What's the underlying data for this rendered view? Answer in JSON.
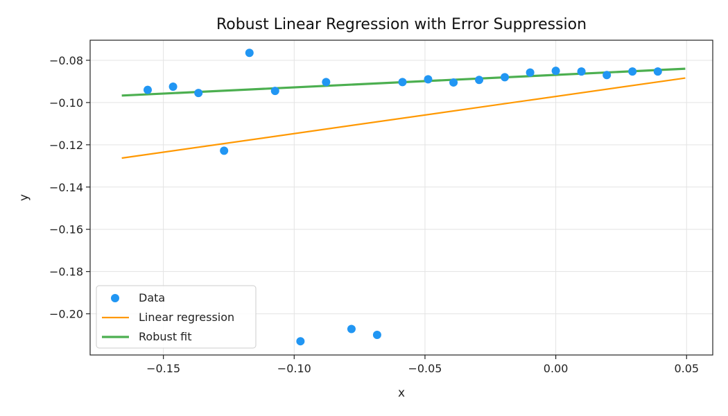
{
  "chart_data": {
    "type": "scatter",
    "title": "Robust Linear Regression with Error Suppression",
    "xlabel": "x",
    "ylabel": "y",
    "xlim": [
      -0.178,
      0.06
    ],
    "ylim": [
      -0.2195,
      -0.0705
    ],
    "xticks": [
      -0.15,
      -0.1,
      -0.05,
      0.0,
      0.05
    ],
    "xtick_labels": [
      "−0.15",
      "−0.10",
      "−0.05",
      "0.00",
      "0.05"
    ],
    "yticks": [
      -0.08,
      -0.1,
      -0.12,
      -0.14,
      -0.16,
      -0.18,
      -0.2
    ],
    "ytick_labels": [
      "−0.08",
      "−0.10",
      "−0.12",
      "−0.14",
      "−0.16",
      "−0.18",
      "−0.20"
    ],
    "grid": true,
    "legend_position": "lower-left",
    "series": [
      {
        "name": "Data",
        "kind": "scatter",
        "color": "#2196f3",
        "points": [
          {
            "x": -0.156,
            "y": -0.094
          },
          {
            "x": -0.1463,
            "y": -0.0925
          },
          {
            "x": -0.1366,
            "y": -0.0955
          },
          {
            "x": -0.1268,
            "y": -0.1228
          },
          {
            "x": -0.1171,
            "y": -0.0765
          },
          {
            "x": -0.1073,
            "y": -0.0945
          },
          {
            "x": -0.0976,
            "y": -0.213
          },
          {
            "x": -0.0878,
            "y": -0.0903
          },
          {
            "x": -0.0781,
            "y": -0.2072
          },
          {
            "x": -0.0683,
            "y": -0.21
          },
          {
            "x": -0.0586,
            "y": -0.0903
          },
          {
            "x": -0.0488,
            "y": -0.089
          },
          {
            "x": -0.0391,
            "y": -0.0905
          },
          {
            "x": -0.0293,
            "y": -0.0893
          },
          {
            "x": -0.0195,
            "y": -0.088
          },
          {
            "x": -0.0098,
            "y": -0.0858
          },
          {
            "x": 0.0,
            "y": -0.085
          },
          {
            "x": 0.0098,
            "y": -0.0853
          },
          {
            "x": 0.0195,
            "y": -0.087
          },
          {
            "x": 0.0293,
            "y": -0.0853
          },
          {
            "x": 0.039,
            "y": -0.0853
          }
        ]
      },
      {
        "name": "Linear regression",
        "kind": "line",
        "color": "#ff9800",
        "points": [
          {
            "x": -0.1659,
            "y": -0.1263
          },
          {
            "x": 0.0495,
            "y": -0.0884
          }
        ]
      },
      {
        "name": "Robust fit",
        "kind": "line",
        "color": "#4caf50",
        "points": [
          {
            "x": -0.1659,
            "y": -0.0967
          },
          {
            "x": 0.0495,
            "y": -0.084
          }
        ]
      }
    ]
  }
}
